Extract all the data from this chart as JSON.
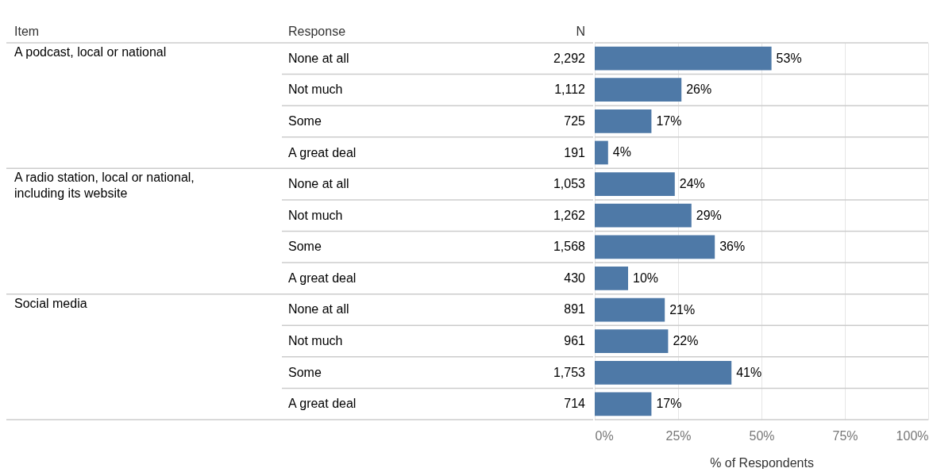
{
  "chart_data": [
    {
      "type": "other",
      "ylabel": "Item",
      "xlabel": "Response",
      "y2label": "N",
      "annotations": [
        "A podcast, local or national",
        "A radio station, local or national, including its website",
        "Social media"
      ],
      "categories": [
        "None at all",
        "Not much",
        "Some",
        "A great deal",
        "None at all",
        "Not much",
        "Some",
        "A great deal",
        "None at all",
        "Not much",
        "Some",
        "A great deal"
      ],
      "values": [
        2292,
        1112,
        725,
        191,
        1053,
        1262,
        1568,
        430,
        891,
        961,
        1753,
        714
      ],
      "value_labels": [
        "2,292",
        "1,112",
        "725",
        "191",
        "1,053",
        "1,262",
        "1,568",
        "430",
        "891",
        "961",
        "1,753",
        "714"
      ]
    },
    {
      "type": "bar",
      "orientation": "horizontal",
      "tick_labels": "x",
      "grid": "x",
      "categories": [
        null,
        null,
        null,
        null,
        null,
        null,
        null,
        null,
        null,
        null,
        null,
        null
      ],
      "values": [
        53,
        26,
        17,
        4,
        24,
        29,
        36,
        10,
        21,
        22,
        41,
        17
      ],
      "value_labels": [
        "53%",
        "26%",
        "17%",
        "4%",
        "24%",
        "29%",
        "36%",
        "10%",
        "21%",
        "22%",
        "41%",
        "17%"
      ],
      "color": "#4e79a7",
      "xlim": [
        0,
        100
      ],
      "xticks": [
        {
          "value": 0,
          "label": "0%"
        },
        {
          "value": 25,
          "label": "25%"
        },
        {
          "value": 50,
          "label": "50%"
        },
        {
          "value": 75,
          "label": "75%"
        },
        {
          "value": 100,
          "label": "100%"
        }
      ],
      "xlabel": "% of Respondents"
    }
  ]
}
